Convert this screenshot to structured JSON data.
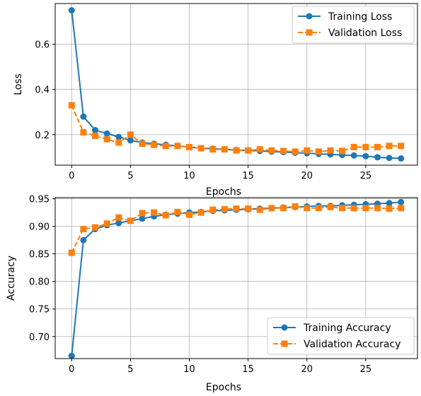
{
  "chart_data": [
    {
      "type": "line",
      "xlabel": "Epochs",
      "ylabel": "Loss",
      "xlim": [
        -1.4,
        29.4
      ],
      "ylim": [
        0.065,
        0.78
      ],
      "xticks": [
        0,
        5,
        10,
        15,
        20,
        25
      ],
      "yticks": [
        0.2,
        0.4,
        0.6
      ],
      "ytick_labels": [
        "0.2",
        "0.4",
        "0.6"
      ],
      "grid": true,
      "legend_position": "top-right",
      "x": [
        0,
        1,
        2,
        3,
        4,
        5,
        6,
        7,
        8,
        9,
        10,
        11,
        12,
        13,
        14,
        15,
        16,
        17,
        18,
        19,
        20,
        21,
        22,
        23,
        24,
        25,
        26,
        27,
        28
      ],
      "series": [
        {
          "name": "Training Loss",
          "color": "#1f77b4",
          "marker": "circle",
          "line_style": "solid",
          "values": [
            0.75,
            0.28,
            0.22,
            0.205,
            0.19,
            0.175,
            0.165,
            0.16,
            0.155,
            0.15,
            0.145,
            0.14,
            0.138,
            0.135,
            0.132,
            0.13,
            0.128,
            0.125,
            0.123,
            0.12,
            0.118,
            0.115,
            0.113,
            0.11,
            0.108,
            0.105,
            0.1,
            0.097,
            0.095
          ]
        },
        {
          "name": "Validation Loss",
          "color": "#ff7f0e",
          "marker": "square",
          "line_style": "dashed",
          "values": [
            0.33,
            0.21,
            0.195,
            0.18,
            0.165,
            0.2,
            0.16,
            0.155,
            0.15,
            0.15,
            0.145,
            0.14,
            0.135,
            0.135,
            0.13,
            0.13,
            0.135,
            0.13,
            0.128,
            0.125,
            0.13,
            0.125,
            0.13,
            0.128,
            0.145,
            0.145,
            0.145,
            0.15,
            0.15
          ]
        }
      ]
    },
    {
      "type": "line",
      "xlabel": "Epochs",
      "ylabel": "Accuracy",
      "xlim": [
        -1.4,
        29.4
      ],
      "ylim": [
        0.66,
        0.952
      ],
      "xticks": [
        0,
        5,
        10,
        15,
        20,
        25
      ],
      "yticks": [
        0.7,
        0.75,
        0.8,
        0.85,
        0.9,
        0.95
      ],
      "ytick_labels": [
        "0.70",
        "0.75",
        "0.80",
        "0.85",
        "0.90",
        "0.95"
      ],
      "grid": true,
      "legend_position": "lower-right",
      "x": [
        0,
        1,
        2,
        3,
        4,
        5,
        6,
        7,
        8,
        9,
        10,
        11,
        12,
        13,
        14,
        15,
        16,
        17,
        18,
        19,
        20,
        21,
        22,
        23,
        24,
        25,
        26,
        27,
        28
      ],
      "series": [
        {
          "name": "Training Accuracy",
          "color": "#1f77b4",
          "marker": "circle",
          "line_style": "solid",
          "values": [
            0.665,
            0.875,
            0.895,
            0.902,
            0.906,
            0.91,
            0.914,
            0.918,
            0.921,
            0.923,
            0.925,
            0.926,
            0.928,
            0.929,
            0.93,
            0.931,
            0.932,
            0.933,
            0.934,
            0.935,
            0.936,
            0.937,
            0.937,
            0.938,
            0.939,
            0.94,
            0.941,
            0.942,
            0.944
          ]
        },
        {
          "name": "Validation Accuracy",
          "color": "#ff7f0e",
          "marker": "square",
          "line_style": "dashed",
          "values": [
            0.852,
            0.895,
            0.898,
            0.905,
            0.916,
            0.91,
            0.924,
            0.925,
            0.92,
            0.926,
            0.921,
            0.925,
            0.93,
            0.931,
            0.932,
            0.932,
            0.93,
            0.933,
            0.933,
            0.936,
            0.933,
            0.933,
            0.935,
            0.933,
            0.933,
            0.933,
            0.933,
            0.932,
            0.933
          ]
        }
      ]
    }
  ]
}
